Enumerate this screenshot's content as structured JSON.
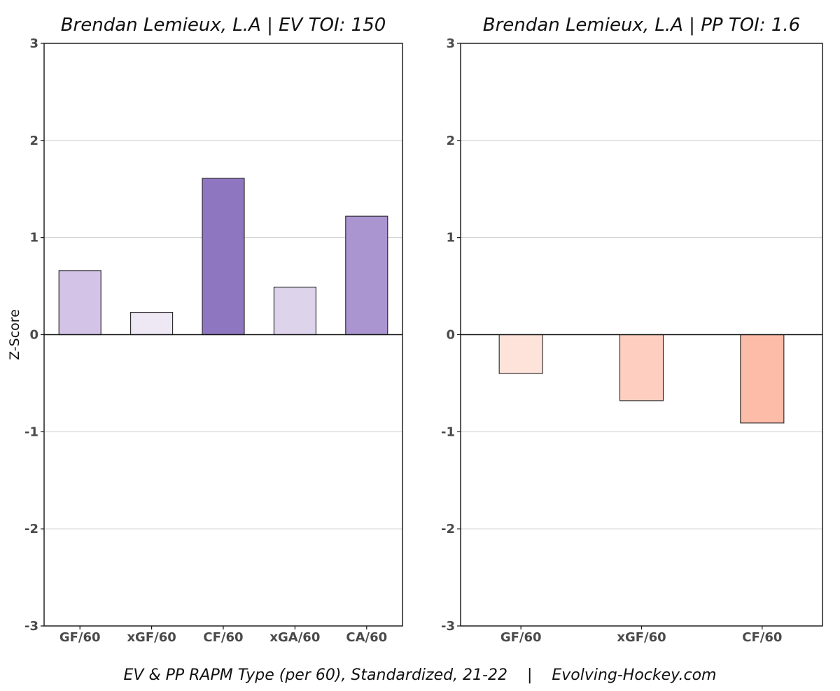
{
  "caption": "EV & PP RAPM Type (per 60), Standardized, 21-22    |    Evolving-Hockey.com",
  "chart_data": [
    {
      "type": "bar",
      "title": "Brendan Lemieux, L.A  |  EV TOI: 150",
      "ylabel": "Z-Score",
      "xlabel": "",
      "ylim": [
        -3,
        3
      ],
      "yticks": [
        -3,
        -2,
        -1,
        0,
        1,
        2,
        3
      ],
      "grid": true,
      "categories": [
        "GF/60",
        "xGF/60",
        "CF/60",
        "xGA/60",
        "CA/60"
      ],
      "values": [
        0.66,
        0.23,
        1.61,
        0.49,
        1.22
      ],
      "colors": [
        "#d3c4e7",
        "#eee8f5",
        "#8f76c1",
        "#ddd3eb",
        "#ab95d1"
      ]
    },
    {
      "type": "bar",
      "title": "Brendan Lemieux, L.A  |  PP TOI: 1.6",
      "ylabel": "",
      "xlabel": "",
      "ylim": [
        -3,
        3
      ],
      "yticks": [
        -3,
        -2,
        -1,
        0,
        1,
        2,
        3
      ],
      "grid": true,
      "categories": [
        "GF/60",
        "xGF/60",
        "CF/60"
      ],
      "values": [
        -0.4,
        -0.68,
        -0.91
      ],
      "colors": [
        "#fee3da",
        "#fecfc0",
        "#fdbca8"
      ]
    }
  ]
}
